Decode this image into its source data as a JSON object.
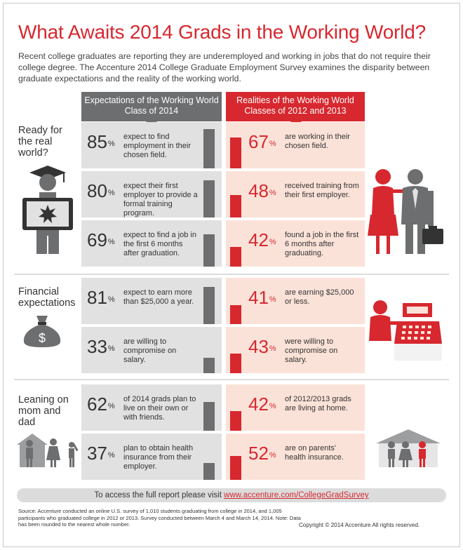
{
  "title": "What Awaits 2014 Grads in the Working World?",
  "intro": "Recent college graduates are reporting they are underemployed and working in jobs that do not require their college degree. The Accenture 2014 College Graduate Employment Survey examines the disparity between graduate expectations and the reality of the working world.",
  "columns": {
    "expectations": {
      "line1": "Expectations of the Working World",
      "line2": "Class of 2014"
    },
    "realities": {
      "line1": "Realities of the Working World",
      "line2": "Classes of 2012 and 2013"
    }
  },
  "colors": {
    "accent_red": "#d7282f",
    "gray_dark": "#6d6e70",
    "gray_light": "#e1e1e2",
    "peach": "#fbe2d8"
  },
  "sections": [
    {
      "label_lines": [
        "Ready for",
        "the real",
        "world?"
      ],
      "icon": "graduate-icon",
      "right_icon": "business-people-icon",
      "rows": [
        {
          "exp": {
            "value": 85,
            "pct": "85",
            "desc": "expect to find employment in their chosen field."
          },
          "real": {
            "value": 67,
            "pct": "67",
            "desc": "are working in their chosen field."
          }
        },
        {
          "exp": {
            "value": 80,
            "pct": "80",
            "desc": "expect their first employer to provide a formal training program."
          },
          "real": {
            "value": 48,
            "pct": "48",
            "desc": "received training from their first employer."
          }
        },
        {
          "exp": {
            "value": 69,
            "pct": "69",
            "desc": "expect to find a job in the first 6 months after graduation."
          },
          "real": {
            "value": 42,
            "pct": "42",
            "desc": "found a job in the first 6 months after graduating."
          }
        }
      ]
    },
    {
      "label_lines": [
        "Financial",
        "expectations"
      ],
      "icon": "money-bag-icon",
      "right_icon": "cash-register-icon",
      "rows": [
        {
          "exp": {
            "value": 81,
            "pct": "81",
            "desc": "expect to earn more than $25,000 a year."
          },
          "real": {
            "value": 41,
            "pct": "41",
            "desc": "are earning $25,000 or less."
          }
        },
        {
          "exp": {
            "value": 33,
            "pct": "33",
            "desc": "are willing to compromise on salary."
          },
          "real": {
            "value": 43,
            "pct": "43",
            "desc": "were willing to compromise on salary."
          }
        }
      ]
    },
    {
      "label_lines": [
        "Leaning on",
        "mom and",
        "dad"
      ],
      "icon": "family-icon",
      "right_icon": "house-family-icon",
      "rows": [
        {
          "exp": {
            "value": 62,
            "pct": "62",
            "desc": "of 2014 grads plan to live on their own or with friends."
          },
          "real": {
            "value": 42,
            "pct": "42",
            "desc": "of 2012/2013 grads are living at home."
          }
        },
        {
          "exp": {
            "value": 37,
            "pct": "37",
            "desc": "plan to obtain health insurance from their employer."
          },
          "real": {
            "value": 52,
            "pct": "52",
            "desc": "are on parents' health insurance."
          }
        }
      ]
    }
  ],
  "percent_sign": "%",
  "report": {
    "text": "To access the full report please visit",
    "link": "www.accenture.com/CollegeGradSurvey"
  },
  "source": "Source: Accenture conducted an online U.S. survey of 1,010 students graduating from college in 2014, and 1,005 participants who graduated college in 2012 or 2013. Survey conducted between March 4 and March 14, 2014. Note: Data has been rounded to the nearest whole number.",
  "copyright": "Copyright © 2014 Accenture  All rights reserved."
}
